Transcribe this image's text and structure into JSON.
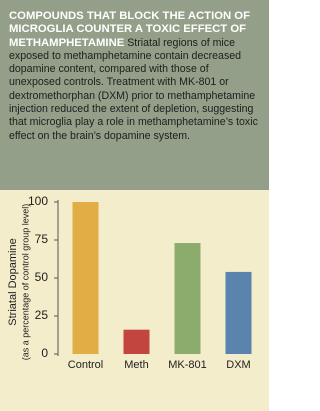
{
  "caption": {
    "title": "COMPOUNDS THAT BLOCK THE ACTION OF MICROGLIA COUNTER A TOXIC EFFECT OF METHAMPHETAMINE",
    "text": "Striatal regions of mice exposed to methamphetamine contain decreased dopamine content, compared with those of unexposed controls. Treatment with MK-801 or dextromethorphan (DXM) prior to methamphetamine injection reduced the extent of depletion, suggesting that microglia play a role in methamphetamine’s toxic effect on the brain’s dopamine system."
  },
  "chart_data": {
    "type": "bar",
    "ylabel": "Striatal Dopamine",
    "ylabel_sub": "(as a percentage of control group level)",
    "categories": [
      "Control",
      "Meth",
      "MK-801",
      "DXM"
    ],
    "values": [
      100,
      16,
      73,
      54
    ],
    "colors": [
      "#e3ad45",
      "#c2453f",
      "#8bac6c",
      "#5a84ad"
    ],
    "ylim": [
      0,
      100
    ],
    "yticks": [
      0,
      25,
      50,
      75,
      100
    ],
    "grid": false
  }
}
